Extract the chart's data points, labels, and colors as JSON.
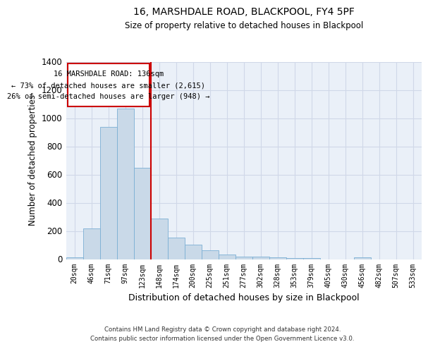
{
  "title": "16, MARSHDALE ROAD, BLACKPOOL, FY4 5PF",
  "subtitle": "Size of property relative to detached houses in Blackpool",
  "xlabel": "Distribution of detached houses by size in Blackpool",
  "ylabel": "Number of detached properties",
  "footer_line1": "Contains HM Land Registry data © Crown copyright and database right 2024.",
  "footer_line2": "Contains public sector information licensed under the Open Government Licence v3.0.",
  "bar_labels": [
    "20sqm",
    "46sqm",
    "71sqm",
    "97sqm",
    "123sqm",
    "148sqm",
    "174sqm",
    "200sqm",
    "225sqm",
    "251sqm",
    "277sqm",
    "302sqm",
    "328sqm",
    "353sqm",
    "379sqm",
    "405sqm",
    "430sqm",
    "456sqm",
    "482sqm",
    "507sqm",
    "533sqm"
  ],
  "bar_values": [
    15,
    220,
    940,
    1070,
    650,
    290,
    155,
    105,
    65,
    35,
    20,
    20,
    15,
    10,
    10,
    0,
    0,
    15,
    0,
    0,
    0
  ],
  "bar_color": "#c9d9e8",
  "bar_edge_color": "#7bafd4",
  "grid_color": "#d0d8e8",
  "bg_color": "#eaf0f8",
  "vline_x": 4.5,
  "vline_color": "#cc0000",
  "annotation_line1": "16 MARSHDALE ROAD: 136sqm",
  "annotation_line2": "← 73% of detached houses are smaller (2,615)",
  "annotation_line3": "26% of semi-detached houses are larger (948) →",
  "annotation_box_color": "#cc0000",
  "ylim": [
    0,
    1400
  ],
  "yticks": [
    0,
    200,
    400,
    600,
    800,
    1000,
    1200,
    1400
  ]
}
